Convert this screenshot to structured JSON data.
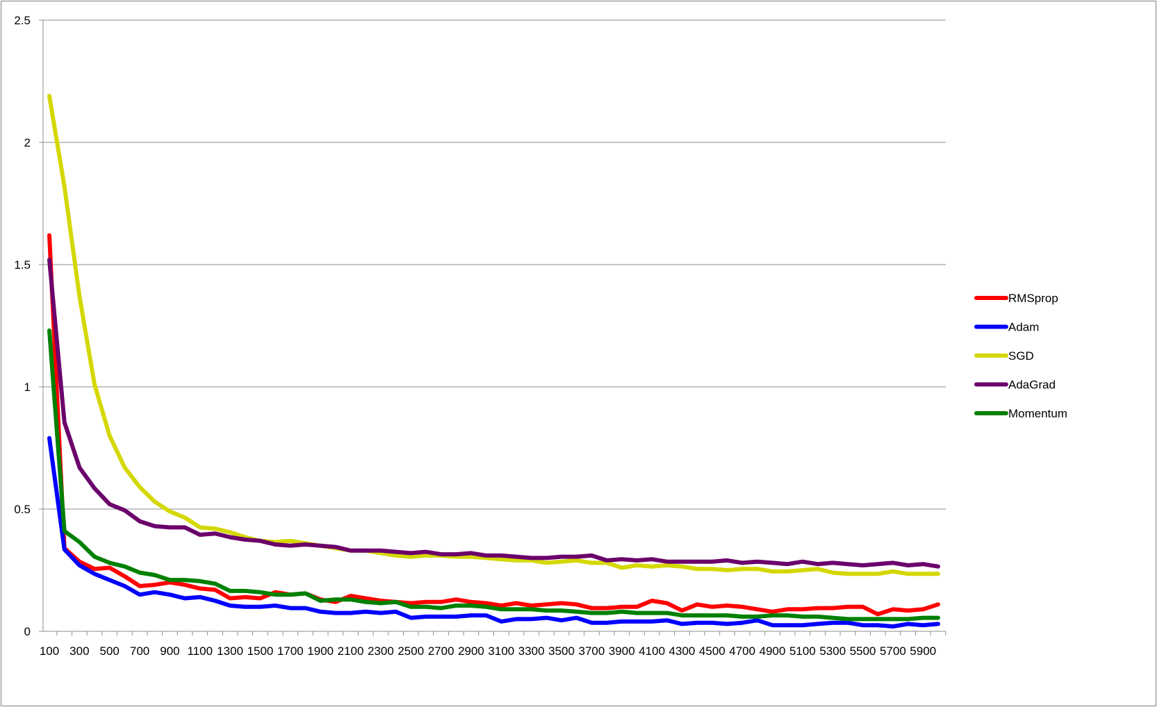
{
  "chart_data": {
    "type": "line",
    "title": "",
    "xlabel": "",
    "ylabel": "",
    "x": [
      100,
      200,
      300,
      400,
      500,
      600,
      700,
      800,
      900,
      1000,
      1100,
      1200,
      1300,
      1400,
      1500,
      1600,
      1700,
      1800,
      1900,
      2000,
      2100,
      2200,
      2300,
      2400,
      2500,
      2600,
      2700,
      2800,
      2900,
      3000,
      3100,
      3200,
      3300,
      3400,
      3500,
      3600,
      3700,
      3800,
      3900,
      4000,
      4100,
      4200,
      4300,
      4400,
      4500,
      4600,
      4700,
      4800,
      4900,
      5000,
      5100,
      5200,
      5300,
      5400,
      5500,
      5600,
      5700,
      5800,
      5900,
      6000
    ],
    "x_tick_labels": [
      "100",
      "300",
      "500",
      "700",
      "900",
      "1100",
      "1300",
      "1500",
      "1700",
      "1900",
      "2100",
      "2300",
      "2500",
      "2700",
      "2900",
      "3100",
      "3300",
      "3500",
      "3700",
      "3900",
      "4100",
      "4300",
      "4500",
      "4700",
      "4900",
      "5100",
      "5300",
      "5500",
      "5700",
      "5900"
    ],
    "y_tick_labels": [
      "0",
      "0.5",
      "1",
      "1.5",
      "2",
      "2.5"
    ],
    "ylim": [
      0,
      2.5
    ],
    "grid": "horizontal",
    "legend_position": "right",
    "series": [
      {
        "name": "RMSprop",
        "color": "#ff0000",
        "values": [
          1.62,
          0.34,
          0.285,
          0.255,
          0.26,
          0.225,
          0.185,
          0.19,
          0.2,
          0.19,
          0.175,
          0.17,
          0.135,
          0.14,
          0.135,
          0.16,
          0.15,
          0.155,
          0.13,
          0.12,
          0.145,
          0.135,
          0.125,
          0.12,
          0.115,
          0.12,
          0.12,
          0.13,
          0.12,
          0.115,
          0.105,
          0.115,
          0.105,
          0.11,
          0.115,
          0.11,
          0.095,
          0.095,
          0.1,
          0.1,
          0.125,
          0.115,
          0.085,
          0.11,
          0.1,
          0.105,
          0.1,
          0.09,
          0.08,
          0.09,
          0.09,
          0.095,
          0.095,
          0.1,
          0.1,
          0.07,
          0.09,
          0.085,
          0.09,
          0.11
        ]
      },
      {
        "name": "Adam",
        "color": "#0000ff",
        "values": [
          0.79,
          0.335,
          0.27,
          0.235,
          0.21,
          0.185,
          0.15,
          0.16,
          0.15,
          0.135,
          0.14,
          0.125,
          0.105,
          0.1,
          0.1,
          0.105,
          0.095,
          0.095,
          0.08,
          0.075,
          0.075,
          0.08,
          0.075,
          0.08,
          0.055,
          0.06,
          0.06,
          0.06,
          0.065,
          0.065,
          0.04,
          0.05,
          0.05,
          0.055,
          0.045,
          0.055,
          0.035,
          0.035,
          0.04,
          0.04,
          0.04,
          0.045,
          0.03,
          0.035,
          0.035,
          0.03,
          0.035,
          0.045,
          0.025,
          0.025,
          0.025,
          0.03,
          0.035,
          0.035,
          0.025,
          0.025,
          0.02,
          0.03,
          0.025,
          0.03
        ]
      },
      {
        "name": "SGD",
        "color": "#d4d800",
        "values": [
          2.19,
          1.82,
          1.37,
          1.01,
          0.8,
          0.67,
          0.59,
          0.53,
          0.49,
          0.465,
          0.425,
          0.42,
          0.405,
          0.385,
          0.37,
          0.365,
          0.37,
          0.36,
          0.35,
          0.34,
          0.33,
          0.33,
          0.32,
          0.31,
          0.305,
          0.31,
          0.31,
          0.305,
          0.305,
          0.3,
          0.295,
          0.29,
          0.29,
          0.28,
          0.285,
          0.29,
          0.28,
          0.28,
          0.26,
          0.27,
          0.265,
          0.27,
          0.265,
          0.255,
          0.255,
          0.25,
          0.255,
          0.255,
          0.245,
          0.245,
          0.25,
          0.255,
          0.24,
          0.235,
          0.235,
          0.235,
          0.245,
          0.235,
          0.235,
          0.235
        ]
      },
      {
        "name": "AdaGrad",
        "color": "#6b006b",
        "values": [
          1.52,
          0.855,
          0.67,
          0.585,
          0.52,
          0.495,
          0.45,
          0.43,
          0.425,
          0.425,
          0.395,
          0.4,
          0.385,
          0.375,
          0.37,
          0.355,
          0.35,
          0.355,
          0.35,
          0.345,
          0.33,
          0.33,
          0.33,
          0.325,
          0.32,
          0.325,
          0.315,
          0.315,
          0.32,
          0.31,
          0.31,
          0.305,
          0.3,
          0.3,
          0.305,
          0.305,
          0.31,
          0.29,
          0.295,
          0.29,
          0.295,
          0.285,
          0.285,
          0.285,
          0.285,
          0.29,
          0.28,
          0.285,
          0.28,
          0.275,
          0.285,
          0.275,
          0.28,
          0.275,
          0.27,
          0.275,
          0.28,
          0.27,
          0.275,
          0.265
        ]
      },
      {
        "name": "Momentum",
        "color": "#008000",
        "values": [
          1.23,
          0.41,
          0.365,
          0.305,
          0.28,
          0.265,
          0.24,
          0.23,
          0.21,
          0.21,
          0.205,
          0.195,
          0.165,
          0.165,
          0.16,
          0.15,
          0.15,
          0.155,
          0.125,
          0.13,
          0.13,
          0.12,
          0.115,
          0.12,
          0.1,
          0.1,
          0.095,
          0.105,
          0.105,
          0.1,
          0.09,
          0.09,
          0.09,
          0.085,
          0.085,
          0.08,
          0.075,
          0.075,
          0.08,
          0.075,
          0.075,
          0.075,
          0.065,
          0.065,
          0.065,
          0.065,
          0.06,
          0.06,
          0.065,
          0.065,
          0.06,
          0.06,
          0.055,
          0.05,
          0.05,
          0.05,
          0.05,
          0.05,
          0.055,
          0.055
        ]
      }
    ]
  }
}
